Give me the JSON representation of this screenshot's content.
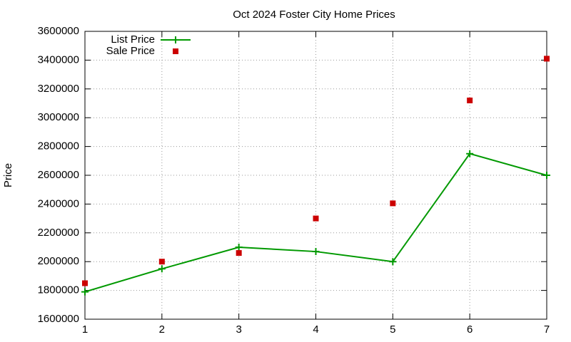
{
  "chart_data": {
    "type": "line",
    "title": "Oct 2024 Foster City Home Prices",
    "ylabel": "Price",
    "x": [
      1,
      2,
      3,
      4,
      5,
      6,
      7
    ],
    "series": [
      {
        "name": "List Price",
        "color": "#009900",
        "style": "linespoints",
        "values": [
          1790000,
          1950000,
          2100000,
          2070000,
          2000000,
          2750000,
          2600000
        ]
      },
      {
        "name": "Sale Price",
        "color": "#cc0000",
        "style": "points",
        "values": [
          1850000,
          2000000,
          2060000,
          2300000,
          2405000,
          3120000,
          3410000
        ]
      }
    ],
    "xlim": [
      1,
      7
    ],
    "xticks": [
      1,
      2,
      3,
      4,
      5,
      6,
      7
    ],
    "ylim": [
      1600000,
      3600000
    ],
    "yticks": [
      1600000,
      1800000,
      2000000,
      2200000,
      2400000,
      2600000,
      2800000,
      3000000,
      3200000,
      3400000,
      3600000
    ],
    "grid": true,
    "legend": "top-left"
  }
}
